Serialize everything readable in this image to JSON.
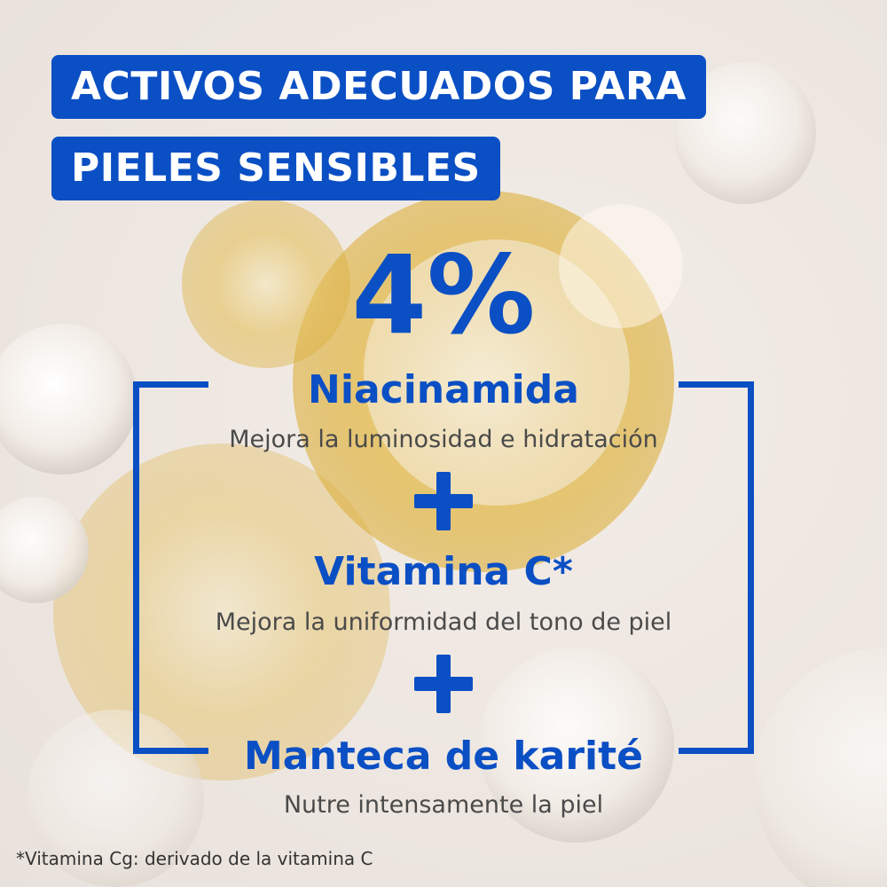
{
  "banner": {
    "line1": "ACTIVOS ADECUADOS PARA",
    "line2": "PIELES SENSIBLES"
  },
  "headline_percent": "4%",
  "ingredients": [
    {
      "name": "Niacinamida",
      "description": "Mejora la luminosidad e hidratación"
    },
    {
      "name": "Vitamina C*",
      "description": "Mejora la uniformidad del tono de piel"
    },
    {
      "name": "Manteca de karité",
      "description": "Nutre intensamente la piel"
    }
  ],
  "footnote": "*Vitamina Cg: derivado de la vitamina C",
  "colors": {
    "brand_blue": "#0b4fc4",
    "description_gray": "#4a4a4a",
    "background": "#efe8e2",
    "gold_serum": "#e2b13c"
  },
  "icons": {
    "separator": "plus-icon"
  }
}
